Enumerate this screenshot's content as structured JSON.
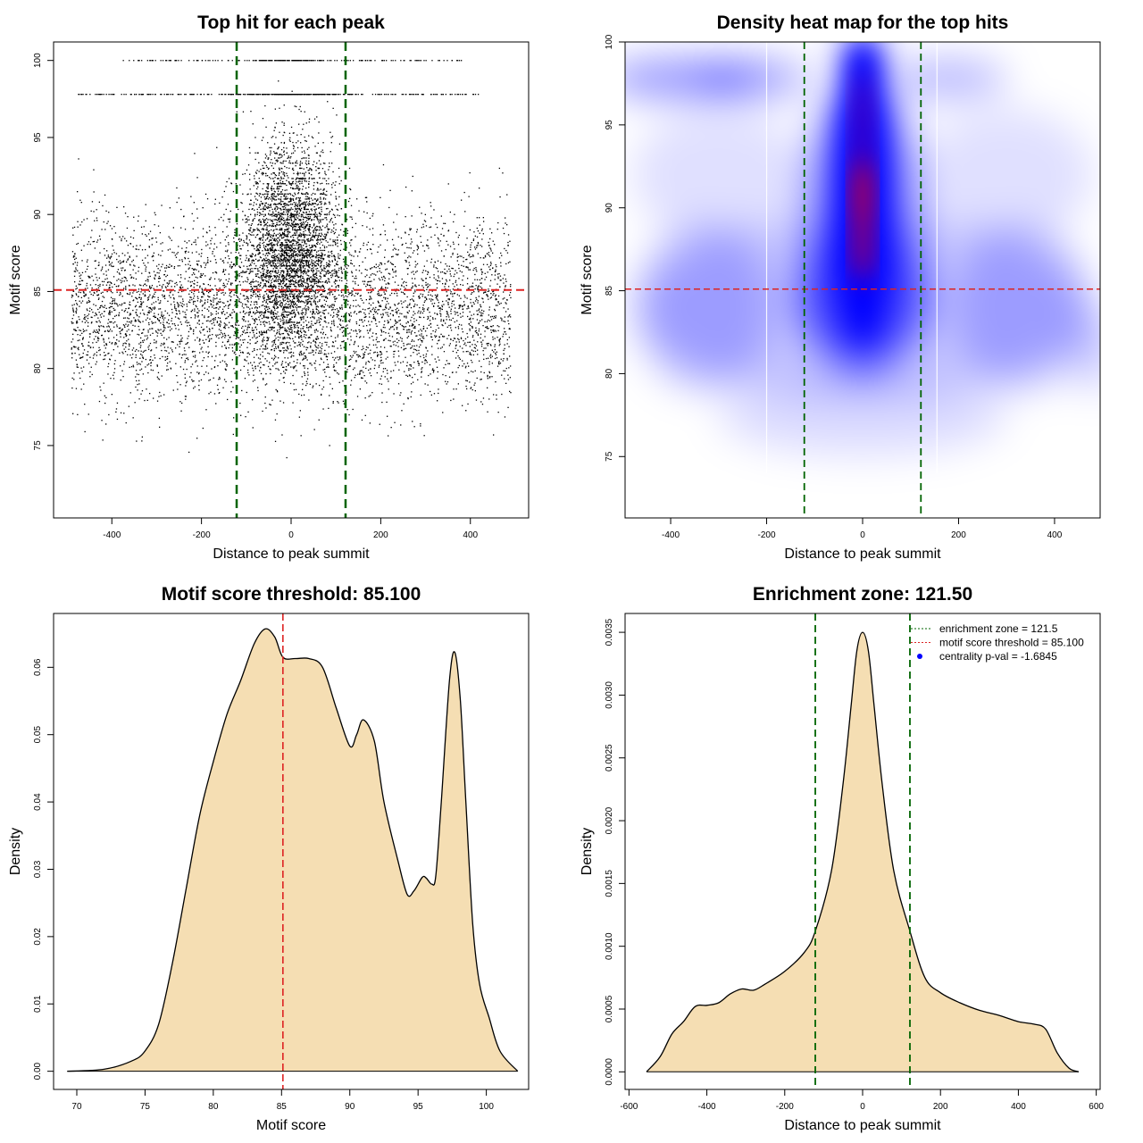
{
  "colors": {
    "points": "#000000",
    "threshold": "#dd2222",
    "zone": "#006400",
    "density_fill": "#f5deb3",
    "heat_low": "#ffffff",
    "heat_mid": "#0000ff",
    "heat_high": "#ff0000",
    "legend_dot": "#0000ff"
  },
  "chart_data": [
    {
      "id": "scatter",
      "type": "scatter",
      "title": "Top hit for each peak",
      "xlabel": "Distance to peak summit",
      "ylabel": "Motif score",
      "xlim": [
        -530,
        530
      ],
      "ylim": [
        70.3,
        101.2
      ],
      "xticks": [
        -400,
        -200,
        0,
        200,
        400
      ],
      "yticks": [
        75,
        80,
        85,
        90,
        95,
        100
      ],
      "threshold_y": 85.1,
      "zone_x": [
        -121.5,
        121.5
      ],
      "n_points": 9000,
      "distribution": {
        "x_range": [
          -490,
          490
        ],
        "y_range": [
          71,
          100
        ],
        "central_sd": 70,
        "discrete_levels": [
          97.8,
          100
        ]
      }
    },
    {
      "id": "heatmap",
      "type": "heatmap",
      "title": "Density heat map for the top hits",
      "xlabel": "Distance to peak summit",
      "ylabel": "Motif score",
      "xlim": [
        -495,
        495
      ],
      "ylim": [
        71.3,
        100
      ],
      "xticks": [
        -400,
        -200,
        0,
        200,
        400
      ],
      "yticks": [
        75,
        80,
        85,
        90,
        95,
        100
      ],
      "threshold_y": 85.1,
      "zone_x": [
        -121.5,
        121.5
      ],
      "palette": [
        "white",
        "blue",
        "red"
      ]
    },
    {
      "id": "score_density",
      "type": "area",
      "title": "Motif score threshold: 85.100",
      "xlabel": "Motif score",
      "ylabel": "Density",
      "xlim": [
        68.3,
        103.1
      ],
      "ylim": [
        -0.0027,
        0.068
      ],
      "xticks": [
        70,
        75,
        80,
        85,
        90,
        95,
        100
      ],
      "yticks": [
        0.0,
        0.01,
        0.02,
        0.03,
        0.04,
        0.05,
        0.06
      ],
      "ytick_labels": [
        "0.00",
        "0.01",
        "0.02",
        "0.03",
        "0.04",
        "0.05",
        "0.06"
      ],
      "threshold_x": 85.1,
      "x": [
        69.3,
        72,
        74,
        75,
        76,
        77,
        78,
        79,
        80,
        81,
        82,
        83,
        83.8,
        84.5,
        85.1,
        86,
        87,
        88,
        89,
        90,
        90.5,
        91,
        91.8,
        92.5,
        93.5,
        94.2,
        94.7,
        95.3,
        95.6,
        96,
        96.3,
        96.7,
        97.3,
        97.7,
        98.1,
        98.5,
        99,
        99.5,
        100.2,
        101,
        102.3
      ],
      "y": [
        0,
        0.0003,
        0.0015,
        0.003,
        0.007,
        0.016,
        0.027,
        0.038,
        0.046,
        0.053,
        0.058,
        0.0635,
        0.0657,
        0.0645,
        0.0615,
        0.0613,
        0.0613,
        0.06,
        0.054,
        0.0483,
        0.05,
        0.0522,
        0.049,
        0.04,
        0.0315,
        0.0263,
        0.0268,
        0.0288,
        0.0287,
        0.0278,
        0.029,
        0.04,
        0.058,
        0.0622,
        0.055,
        0.04,
        0.022,
        0.013,
        0.008,
        0.003,
        0
      ]
    },
    {
      "id": "distance_density",
      "type": "area",
      "title": "Enrichment zone: 121.50",
      "xlabel": "Distance to peak summit",
      "ylabel": "Density",
      "xlim": [
        -610,
        610
      ],
      "ylim": [
        -0.00014,
        0.00365
      ],
      "xticks": [
        -600,
        -400,
        -200,
        0,
        200,
        400,
        600
      ],
      "yticks": [
        0.0,
        0.0005,
        0.001,
        0.0015,
        0.002,
        0.0025,
        0.003,
        0.0035
      ],
      "ytick_labels": [
        "0.0000",
        "0.0005",
        "0.0010",
        "0.0015",
        "0.0020",
        "0.0025",
        "0.0030",
        "0.0035"
      ],
      "zone_x": [
        -121.5,
        121.5
      ],
      "x": [
        -555,
        -520,
        -490,
        -460,
        -430,
        -400,
        -370,
        -340,
        -310,
        -280,
        -250,
        -200,
        -150,
        -121.5,
        -80,
        -50,
        -30,
        -15,
        0,
        15,
        30,
        50,
        80,
        121.5,
        160,
        200,
        250,
        300,
        350,
        400,
        440,
        470,
        500,
        530,
        555
      ],
      "y": [
        0,
        0.00012,
        0.0003,
        0.0004,
        0.00052,
        0.00053,
        0.00055,
        0.00062,
        0.00066,
        0.00065,
        0.0007,
        0.0008,
        0.00095,
        0.00112,
        0.0016,
        0.0023,
        0.0029,
        0.00335,
        0.0035,
        0.00335,
        0.0029,
        0.0023,
        0.0016,
        0.00112,
        0.00075,
        0.00063,
        0.00055,
        0.00049,
        0.00045,
        0.0004,
        0.00038,
        0.00034,
        0.00015,
        3e-05,
        0
      ],
      "legend": [
        {
          "label": "enrichment zone = 121.5",
          "style": "zone"
        },
        {
          "label": "motif score threshold = 85.100",
          "style": "threshold"
        },
        {
          "label": "centrality p-val = -1.6845",
          "style": "dot"
        }
      ]
    }
  ]
}
